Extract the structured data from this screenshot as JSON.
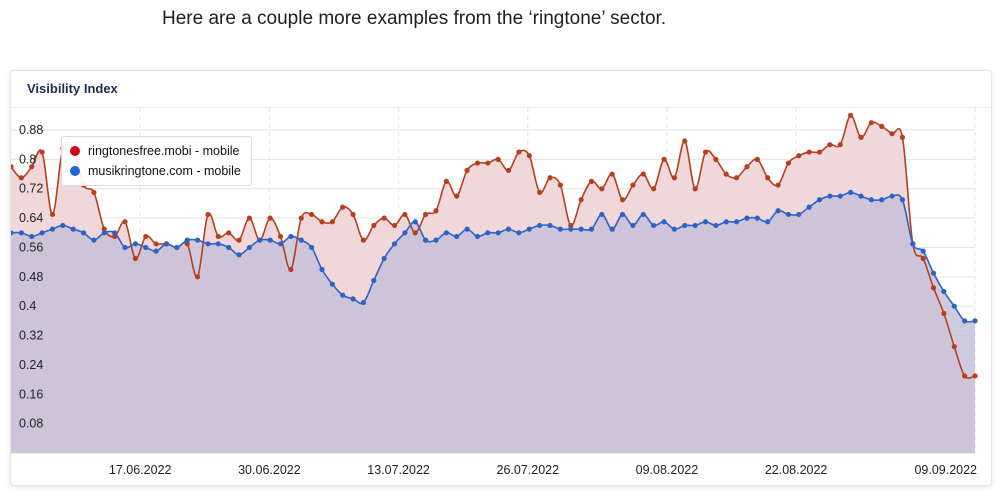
{
  "intro_text": "Here are a couple more examples from the ‘ringtone’ sector.",
  "card": {
    "title": "Visibility Index"
  },
  "legend": [
    {
      "label": "ringtonesfree.mobi - mobile",
      "color": "#d0021b"
    },
    {
      "label": "musikringtone.com - mobile",
      "color": "#1f66d1"
    }
  ],
  "chart_data": {
    "type": "area",
    "title": "Visibility Index",
    "ylim": [
      0,
      0.94
    ],
    "y_ticks": [
      0.08,
      0.16,
      0.24,
      0.32,
      0.4,
      0.48,
      0.56,
      0.64,
      0.72,
      0.8,
      0.88
    ],
    "x_tick_labels": [
      "17.06.2022",
      "30.06.2022",
      "13.07.2022",
      "26.07.2022",
      "09.08.2022",
      "22.08.2022",
      "09.09.2022"
    ],
    "x_start": "2022-06-04",
    "x_end": "2022-09-09",
    "grid": true,
    "legend_position": "top-left",
    "colors": {
      "series1_line": "#b5401f",
      "series1_fill": "#efd7da",
      "series2_line": "#2f63c3",
      "series2_fill": "#c8c1d8",
      "grid": "#e3e3e3"
    },
    "series": [
      {
        "name": "ringtonesfree.mobi - mobile",
        "values": [
          0.78,
          0.75,
          0.78,
          0.82,
          0.65,
          0.83,
          0.83,
          0.73,
          0.71,
          0.61,
          0.59,
          0.63,
          0.53,
          0.59,
          0.57,
          0.57,
          0.56,
          0.57,
          0.48,
          0.65,
          0.59,
          0.6,
          0.58,
          0.64,
          0.58,
          0.64,
          0.59,
          0.5,
          0.64,
          0.65,
          0.63,
          0.63,
          0.67,
          0.65,
          0.58,
          0.62,
          0.64,
          0.62,
          0.65,
          0.6,
          0.65,
          0.66,
          0.74,
          0.7,
          0.77,
          0.79,
          0.79,
          0.8,
          0.77,
          0.82,
          0.81,
          0.71,
          0.75,
          0.73,
          0.62,
          0.69,
          0.74,
          0.72,
          0.76,
          0.69,
          0.73,
          0.76,
          0.72,
          0.8,
          0.75,
          0.85,
          0.72,
          0.82,
          0.8,
          0.76,
          0.75,
          0.78,
          0.8,
          0.75,
          0.73,
          0.79,
          0.81,
          0.82,
          0.82,
          0.84,
          0.84,
          0.92,
          0.86,
          0.9,
          0.89,
          0.87,
          0.86,
          0.57,
          0.53,
          0.45,
          0.38,
          0.29,
          0.21,
          0.21
        ],
        "color": "#b5401f"
      },
      {
        "name": "musikringtone.com - mobile",
        "values": [
          0.6,
          0.6,
          0.59,
          0.6,
          0.61,
          0.62,
          0.61,
          0.6,
          0.58,
          0.6,
          0.6,
          0.56,
          0.57,
          0.56,
          0.55,
          0.57,
          0.56,
          0.58,
          0.58,
          0.57,
          0.57,
          0.56,
          0.54,
          0.56,
          0.58,
          0.58,
          0.57,
          0.59,
          0.58,
          0.56,
          0.5,
          0.46,
          0.43,
          0.42,
          0.41,
          0.47,
          0.53,
          0.57,
          0.6,
          0.63,
          0.58,
          0.58,
          0.6,
          0.59,
          0.61,
          0.59,
          0.6,
          0.6,
          0.61,
          0.6,
          0.61,
          0.62,
          0.62,
          0.61,
          0.61,
          0.61,
          0.61,
          0.65,
          0.61,
          0.65,
          0.62,
          0.65,
          0.62,
          0.63,
          0.61,
          0.62,
          0.62,
          0.63,
          0.62,
          0.63,
          0.63,
          0.64,
          0.64,
          0.63,
          0.66,
          0.65,
          0.65,
          0.67,
          0.69,
          0.7,
          0.7,
          0.71,
          0.7,
          0.69,
          0.69,
          0.7,
          0.69,
          0.57,
          0.55,
          0.49,
          0.44,
          0.4,
          0.36,
          0.36
        ],
        "color": "#2f63c3"
      }
    ]
  }
}
